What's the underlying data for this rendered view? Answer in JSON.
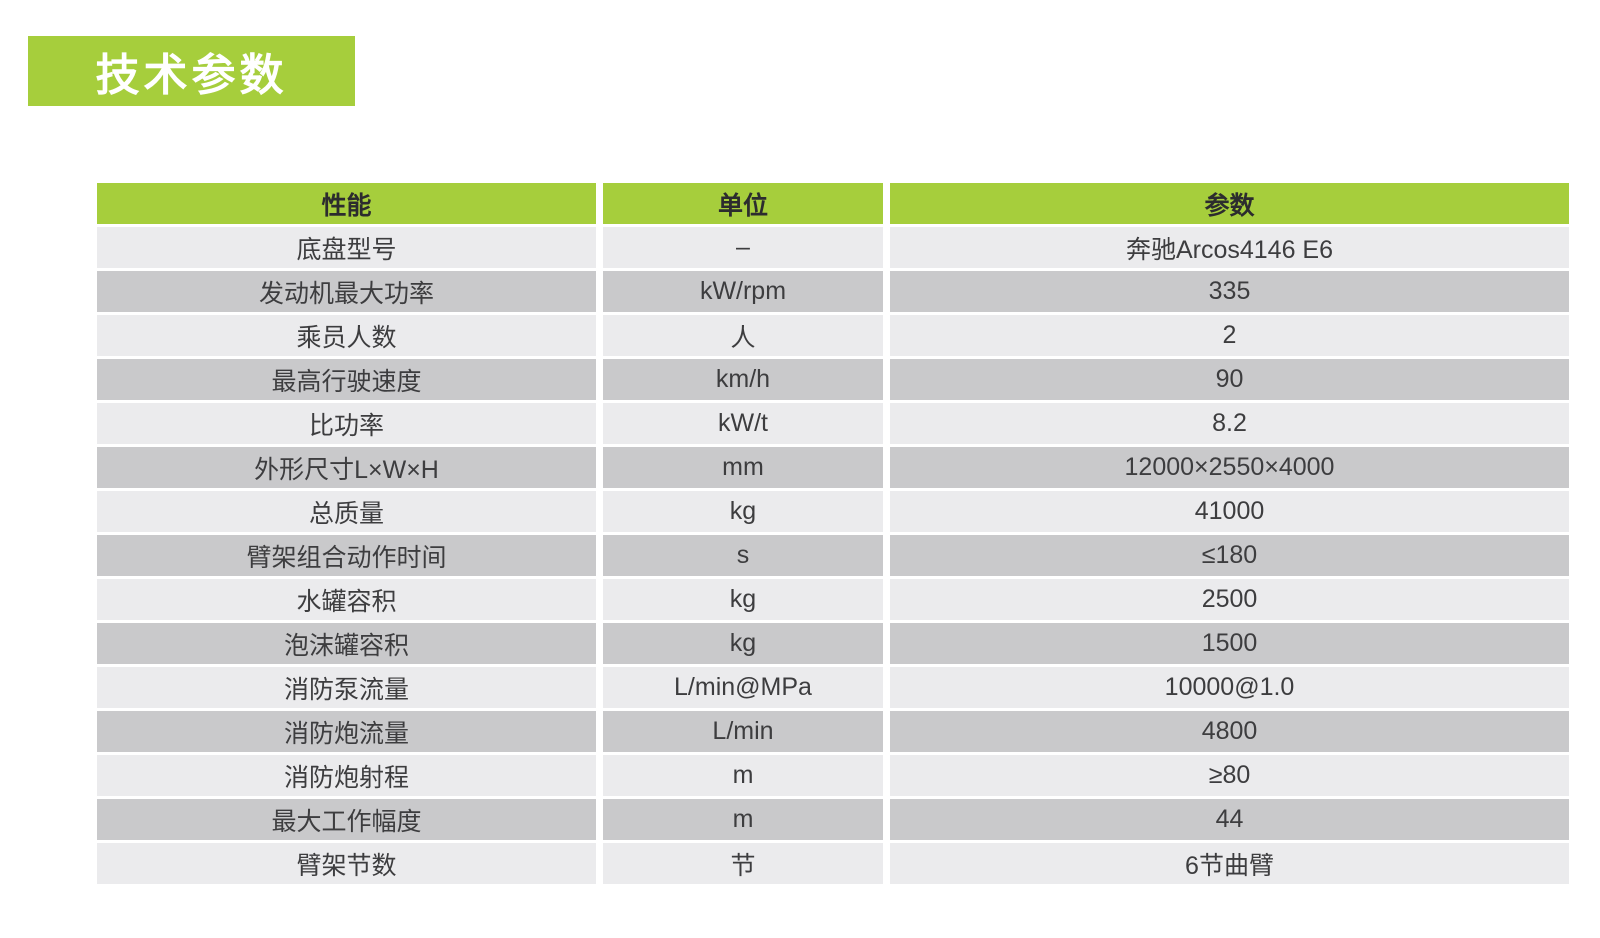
{
  "title": {
    "label": "技术参数",
    "bg_color": "#a6ce3c",
    "text_color": "#ffffff"
  },
  "table": {
    "header": {
      "bg_color": "#a6ce3c",
      "columns": [
        "性能",
        "单位",
        "参数"
      ]
    },
    "row_colors": {
      "light": "#ebebed",
      "dark": "#c9c9cb"
    },
    "rows": [
      {
        "property": "底盘型号",
        "unit": "–",
        "value": "奔驰Arcos4146 E6"
      },
      {
        "property": "发动机最大功率",
        "unit": "kW/rpm",
        "value": "335"
      },
      {
        "property": "乘员人数",
        "unit": "人",
        "value": "2"
      },
      {
        "property": "最高行驶速度",
        "unit": "km/h",
        "value": "90"
      },
      {
        "property": "比功率",
        "unit": "kW/t",
        "value": "8.2"
      },
      {
        "property": "外形尺寸L×W×H",
        "unit": "mm",
        "value": "12000×2550×4000"
      },
      {
        "property": "总质量",
        "unit": "kg",
        "value": "41000"
      },
      {
        "property": "臂架组合动作时间",
        "unit": "s",
        "value": "≤180"
      },
      {
        "property": "水罐容积",
        "unit": "kg",
        "value": "2500"
      },
      {
        "property": "泡沫罐容积",
        "unit": "kg",
        "value": "1500"
      },
      {
        "property": "消防泵流量",
        "unit": "L/min@MPa",
        "value": "10000@1.0"
      },
      {
        "property": "消防炮流量",
        "unit": "L/min",
        "value": "4800"
      },
      {
        "property": "消防炮射程",
        "unit": "m",
        "value": "≥80"
      },
      {
        "property": "最大工作幅度",
        "unit": "m",
        "value": "44"
      },
      {
        "property": "臂架节数",
        "unit": "节",
        "value": "6节曲臂"
      }
    ]
  }
}
